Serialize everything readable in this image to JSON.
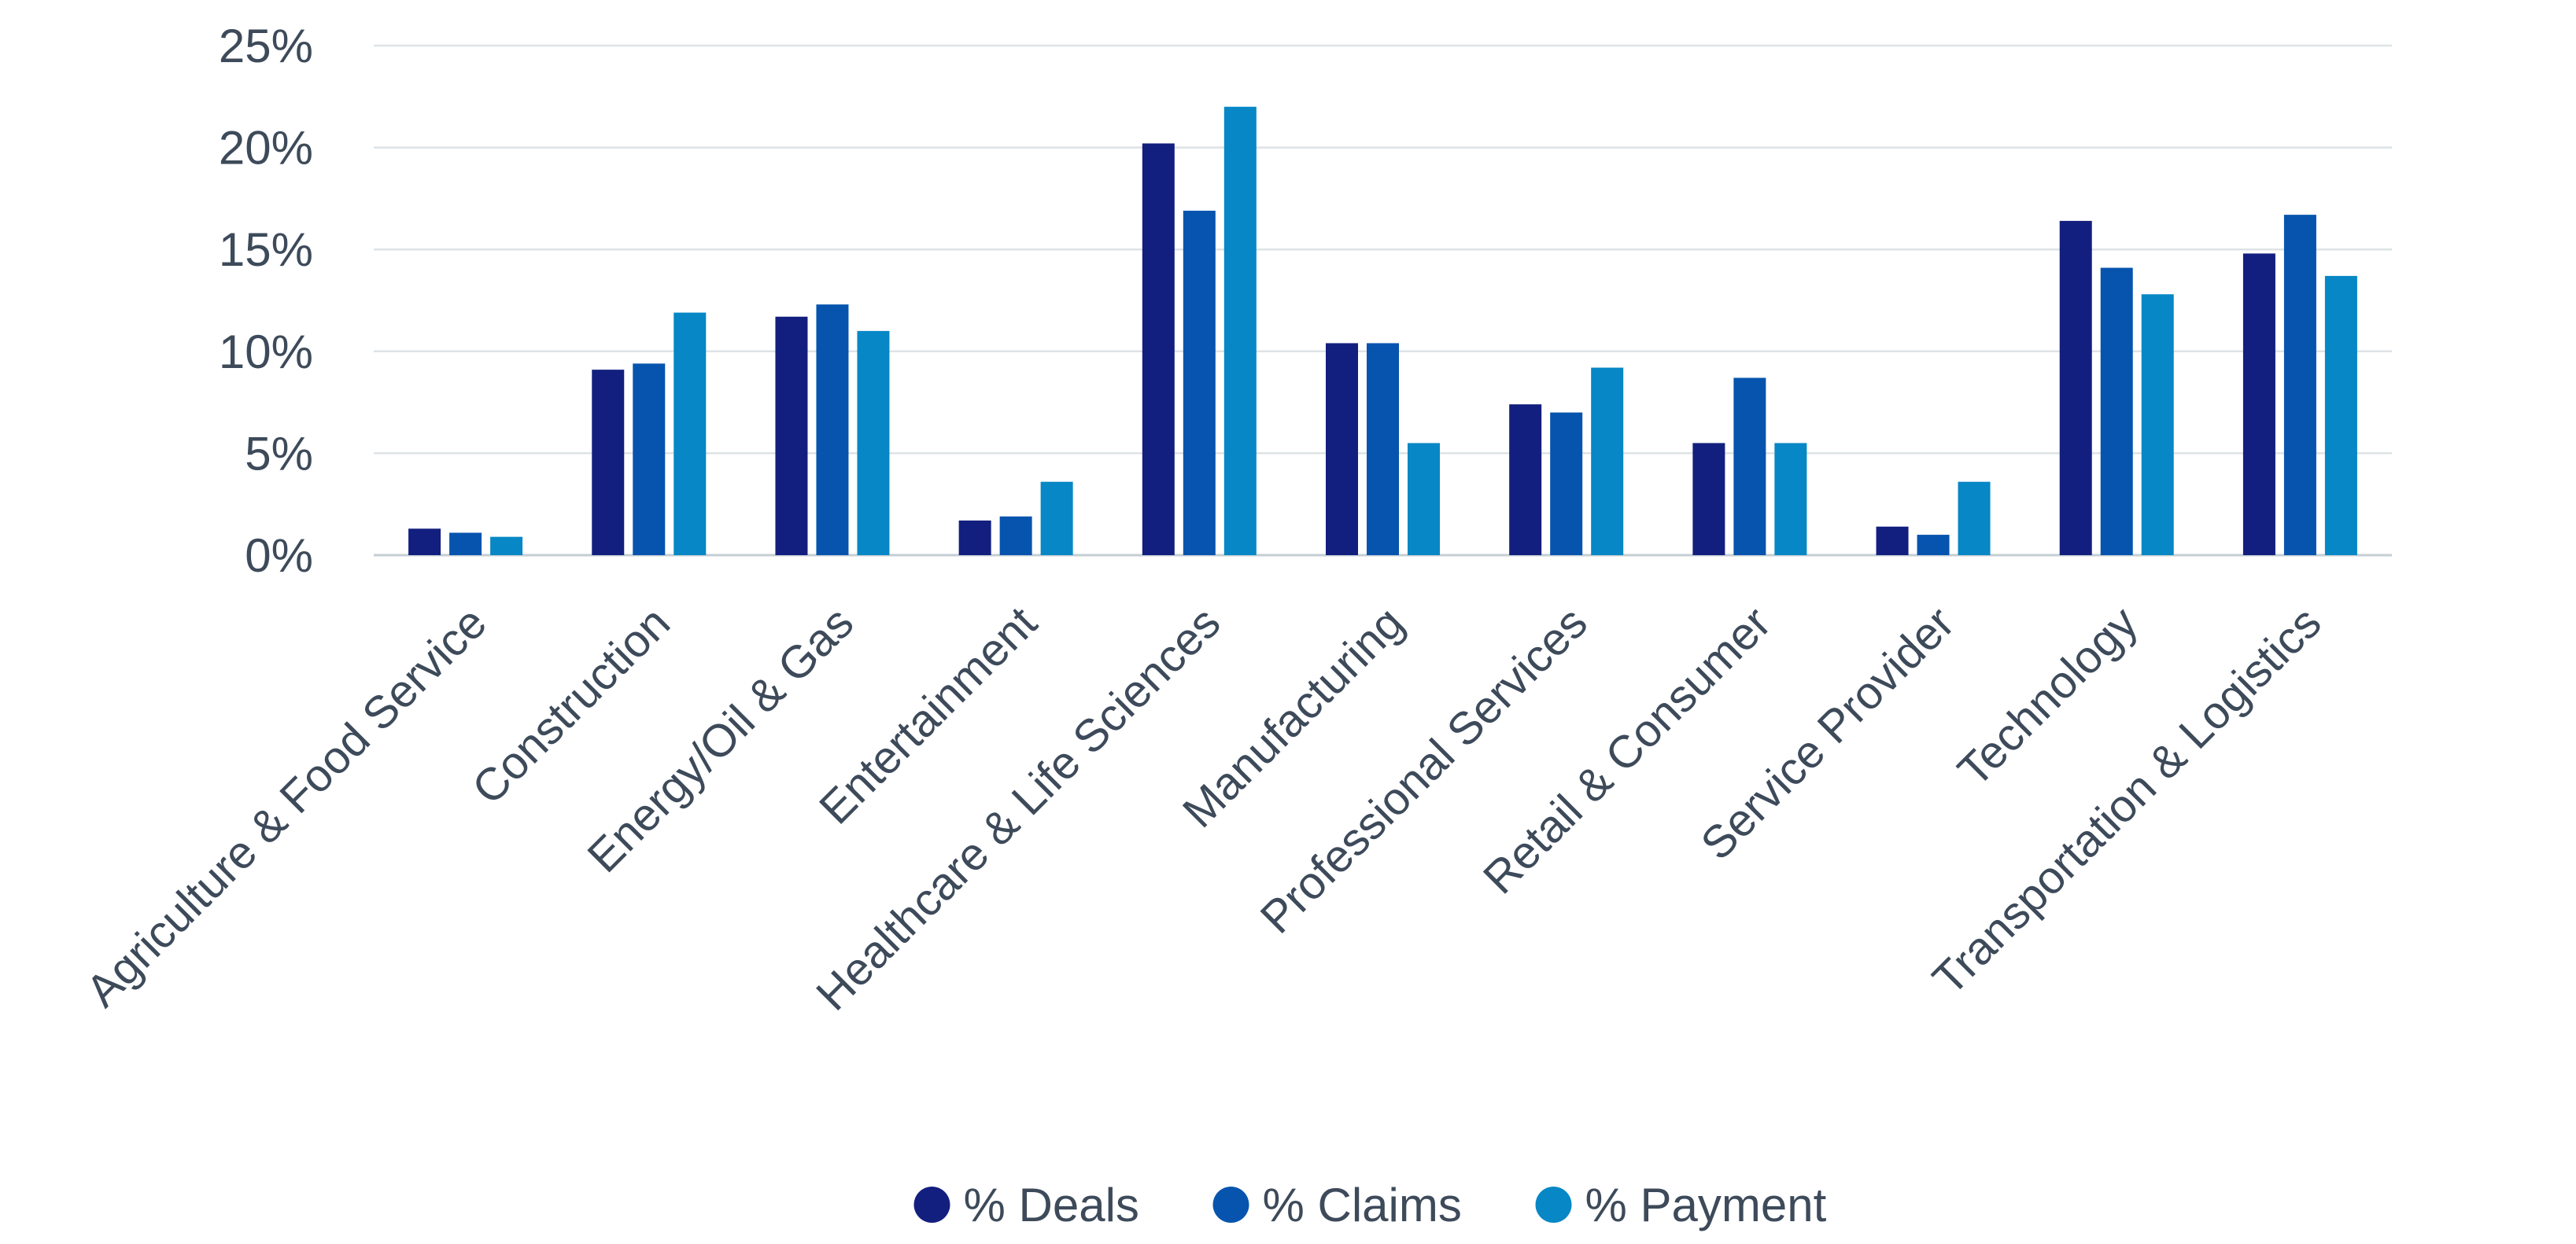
{
  "chart_data": {
    "type": "bar",
    "categories": [
      "Agriculture & Food Service",
      "Construction",
      "Energy/Oil & Gas",
      "Entertainment",
      "Healthcare & Life Sciences",
      "Manufacturing",
      "Professional Services",
      "Retail & Consumer",
      "Service Provider",
      "Technology",
      "Transportation & Logistics"
    ],
    "series": [
      {
        "name": "% Deals",
        "color": "#131f7e",
        "values": [
          1.3,
          9.1,
          11.7,
          1.7,
          20.2,
          10.4,
          7.4,
          5.5,
          1.4,
          16.4,
          14.8
        ]
      },
      {
        "name": "% Claims",
        "color": "#0654ae",
        "values": [
          1.1,
          9.4,
          12.3,
          1.9,
          16.9,
          10.4,
          7.0,
          8.7,
          1.0,
          14.1,
          16.7
        ]
      },
      {
        "name": "% Payment",
        "color": "#0787c5",
        "values": [
          0.9,
          11.9,
          11.0,
          3.6,
          22.0,
          5.5,
          9.2,
          5.5,
          3.6,
          12.8,
          13.7
        ]
      }
    ],
    "yticks": [
      "0%",
      "5%",
      "10%",
      "15%",
      "20%",
      "25%"
    ],
    "ylim": [
      0,
      25
    ],
    "grid": true,
    "legend": "bottom-center",
    "title": "",
    "xlabel": "",
    "ylabel": ""
  }
}
